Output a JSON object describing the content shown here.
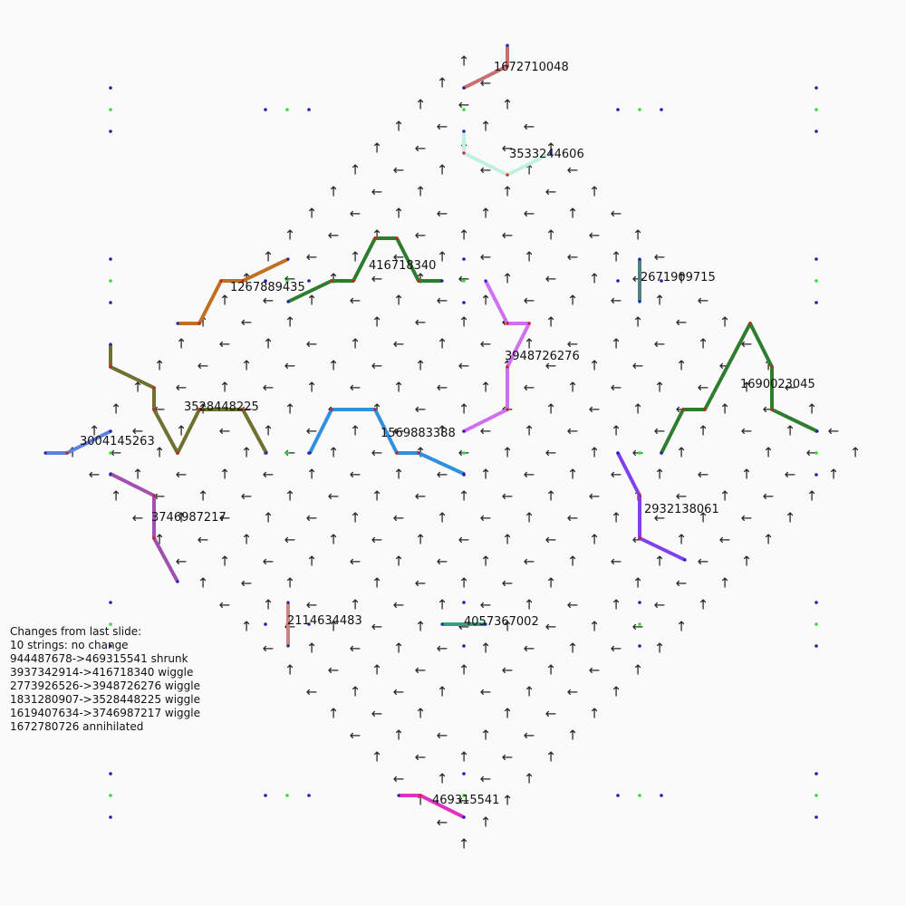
{
  "strings": [
    {
      "label": "1672710048"
    },
    {
      "label": "3533244606"
    },
    {
      "label": "416718340"
    },
    {
      "label": "1267889435"
    },
    {
      "label": "2671909715"
    },
    {
      "label": "3948726276"
    },
    {
      "label": "1690023045"
    },
    {
      "label": "3528448225"
    },
    {
      "label": "3004145263"
    },
    {
      "label": "1569883388"
    },
    {
      "label": "3746987217"
    },
    {
      "label": "2932138061"
    },
    {
      "label": "2114634483"
    },
    {
      "label": "4057367002"
    },
    {
      "label": "469315541"
    }
  ],
  "changes": {
    "heading": "Changes from last slide:",
    "lines": [
      "10 strings: no change",
      "944487678->469315541 shrunk",
      "3937342914->416718340 wiggle",
      "2773926526->3948726276 wiggle",
      "1831280907->3528448225 wiggle",
      "1619407634->3746987217 wiggle",
      "1672780726 annihilated"
    ]
  }
}
